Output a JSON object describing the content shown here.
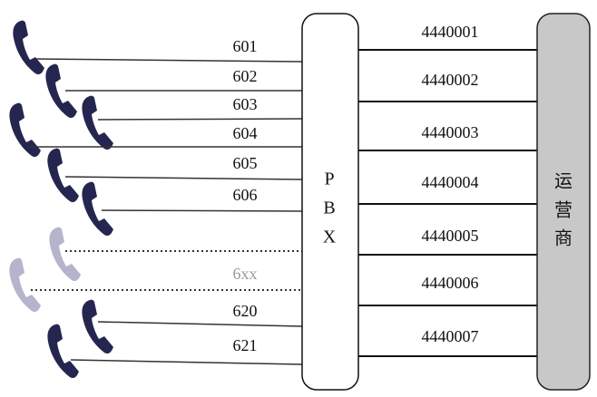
{
  "extensions": [
    "601",
    "602",
    "603",
    "604",
    "605",
    "606",
    null,
    "6xx",
    "620",
    "621"
  ],
  "pbx_label": [
    "P",
    "B",
    "X"
  ],
  "trunks": [
    "4440001",
    "4440002",
    "4440003",
    "4440004",
    "4440005",
    "4440006",
    "4440007"
  ],
  "carrier_label": [
    "运",
    "营",
    "商"
  ]
}
